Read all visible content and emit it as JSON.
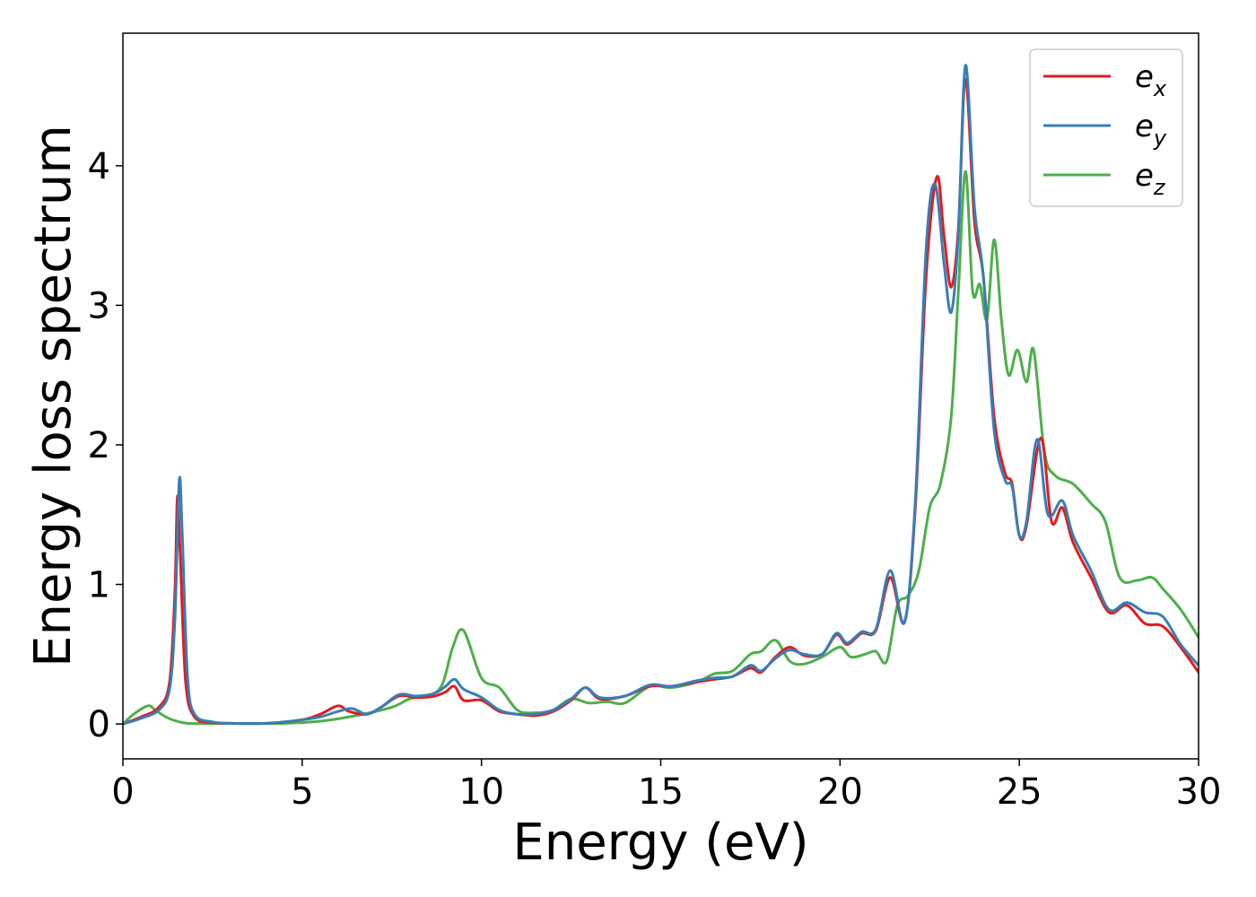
{
  "chart_data": {
    "type": "line",
    "xlabel": "Energy (eV)",
    "ylabel": "Energy loss spectrum",
    "xlim": [
      0,
      30
    ],
    "ylim": [
      -0.25,
      4.95
    ],
    "xticks": [
      0,
      5,
      10,
      15,
      20,
      25,
      30
    ],
    "yticks": [
      0,
      1,
      2,
      3,
      4
    ],
    "grid": false,
    "legend_position": "top-right",
    "series": [
      {
        "name": "e_x",
        "label_base": "e",
        "label_sub": "x",
        "color": "#e41a1c",
        "x": [
          0,
          0.5,
          1.0,
          1.3,
          1.45,
          1.52,
          1.6,
          1.75,
          2.0,
          2.5,
          3.0,
          4.0,
          5.0,
          5.5,
          6.0,
          6.3,
          6.8,
          7.2,
          7.7,
          8.2,
          8.7,
          9.0,
          9.25,
          9.5,
          10.0,
          10.5,
          11.0,
          11.5,
          12.0,
          12.5,
          12.9,
          13.3,
          14.0,
          14.7,
          15.3,
          16.0,
          16.5,
          17.0,
          17.5,
          17.8,
          18.2,
          18.6,
          19.0,
          19.5,
          19.9,
          20.2,
          20.6,
          21.0,
          21.4,
          21.8,
          22.1,
          22.4,
          22.7,
          22.9,
          23.1,
          23.3,
          23.5,
          23.75,
          24.0,
          24.3,
          24.6,
          24.8,
          25.0,
          25.2,
          25.6,
          25.9,
          26.2,
          26.5,
          27.0,
          27.5,
          28.0,
          28.5,
          29.0,
          29.5,
          30.0
        ],
        "y": [
          0,
          0.05,
          0.12,
          0.3,
          0.95,
          1.63,
          1.2,
          0.3,
          0.05,
          0.01,
          0.005,
          0.005,
          0.03,
          0.07,
          0.13,
          0.09,
          0.07,
          0.12,
          0.2,
          0.19,
          0.2,
          0.23,
          0.27,
          0.17,
          0.17,
          0.09,
          0.07,
          0.06,
          0.09,
          0.17,
          0.26,
          0.18,
          0.2,
          0.27,
          0.27,
          0.3,
          0.32,
          0.34,
          0.4,
          0.37,
          0.48,
          0.55,
          0.49,
          0.5,
          0.64,
          0.57,
          0.65,
          0.67,
          1.05,
          0.73,
          1.55,
          3.2,
          3.92,
          3.5,
          3.13,
          3.55,
          4.62,
          3.6,
          3.2,
          2.2,
          1.8,
          1.72,
          1.35,
          1.42,
          2.05,
          1.45,
          1.55,
          1.3,
          1.05,
          0.8,
          0.85,
          0.72,
          0.7,
          0.55,
          0.37
        ]
      },
      {
        "name": "e_y",
        "label_base": "e",
        "label_sub": "y",
        "color": "#377eb8",
        "x": [
          0,
          0.5,
          1.0,
          1.3,
          1.45,
          1.57,
          1.65,
          1.8,
          2.0,
          2.5,
          3.0,
          4.0,
          5.0,
          5.5,
          6.0,
          6.4,
          6.8,
          7.2,
          7.7,
          8.2,
          8.7,
          9.0,
          9.25,
          9.5,
          10.0,
          10.5,
          11.0,
          11.5,
          12.0,
          12.5,
          12.9,
          13.3,
          14.0,
          14.7,
          15.3,
          16.0,
          16.5,
          17.0,
          17.5,
          17.8,
          18.2,
          18.6,
          19.0,
          19.5,
          19.9,
          20.2,
          20.6,
          21.0,
          21.4,
          21.8,
          22.1,
          22.4,
          22.65,
          22.9,
          23.1,
          23.3,
          23.5,
          23.75,
          24.0,
          24.3,
          24.6,
          24.8,
          25.0,
          25.2,
          25.5,
          25.8,
          26.2,
          26.5,
          27.0,
          27.5,
          28.0,
          28.5,
          29.0,
          29.5,
          30.0
        ],
        "y": [
          0,
          0.04,
          0.1,
          0.25,
          0.75,
          1.74,
          1.4,
          0.35,
          0.07,
          0.015,
          0.005,
          0.005,
          0.03,
          0.05,
          0.09,
          0.11,
          0.07,
          0.12,
          0.21,
          0.2,
          0.22,
          0.27,
          0.32,
          0.25,
          0.19,
          0.1,
          0.07,
          0.07,
          0.1,
          0.18,
          0.26,
          0.19,
          0.2,
          0.28,
          0.27,
          0.31,
          0.33,
          0.34,
          0.42,
          0.38,
          0.47,
          0.53,
          0.5,
          0.5,
          0.65,
          0.58,
          0.66,
          0.68,
          1.1,
          0.73,
          1.6,
          3.4,
          3.87,
          3.3,
          2.95,
          3.5,
          4.72,
          3.7,
          3.2,
          2.1,
          1.75,
          1.7,
          1.35,
          1.45,
          2.04,
          1.5,
          1.6,
          1.35,
          1.1,
          0.82,
          0.87,
          0.8,
          0.77,
          0.57,
          0.42
        ]
      },
      {
        "name": "e_z",
        "label_base": "e",
        "label_sub": "z",
        "color": "#4daf4a",
        "x": [
          0,
          0.3,
          0.7,
          0.9,
          1.2,
          1.5,
          1.8,
          2.5,
          3.5,
          4.5,
          5.5,
          6.5,
          7.5,
          8.0,
          8.5,
          8.9,
          9.2,
          9.5,
          10.0,
          10.5,
          11.0,
          11.5,
          12.0,
          12.5,
          13.0,
          13.5,
          14.0,
          14.7,
          15.3,
          16.0,
          16.5,
          17.0,
          17.5,
          17.8,
          18.2,
          18.6,
          19.0,
          19.5,
          20.0,
          20.3,
          20.7,
          21.0,
          21.3,
          21.6,
          21.9,
          22.2,
          22.5,
          22.8,
          23.1,
          23.3,
          23.5,
          23.7,
          23.9,
          24.1,
          24.3,
          24.5,
          24.7,
          24.95,
          25.2,
          25.4,
          25.7,
          26.0,
          26.5,
          27.0,
          27.4,
          27.8,
          28.3,
          28.7,
          29.0,
          29.5,
          30.0
        ],
        "y": [
          0,
          0.07,
          0.13,
          0.1,
          0.05,
          0.02,
          0.005,
          0.003,
          0.003,
          0.005,
          0.02,
          0.06,
          0.12,
          0.18,
          0.2,
          0.28,
          0.55,
          0.67,
          0.33,
          0.26,
          0.1,
          0.08,
          0.1,
          0.18,
          0.15,
          0.16,
          0.15,
          0.27,
          0.26,
          0.3,
          0.36,
          0.38,
          0.5,
          0.52,
          0.6,
          0.45,
          0.43,
          0.48,
          0.55,
          0.48,
          0.5,
          0.52,
          0.45,
          0.85,
          0.92,
          1.1,
          1.55,
          1.72,
          2.2,
          3.1,
          3.96,
          3.1,
          3.15,
          2.9,
          3.47,
          2.9,
          2.5,
          2.68,
          2.45,
          2.68,
          1.95,
          1.78,
          1.72,
          1.58,
          1.45,
          1.05,
          1.03,
          1.05,
          0.97,
          0.82,
          0.62
        ]
      }
    ]
  }
}
